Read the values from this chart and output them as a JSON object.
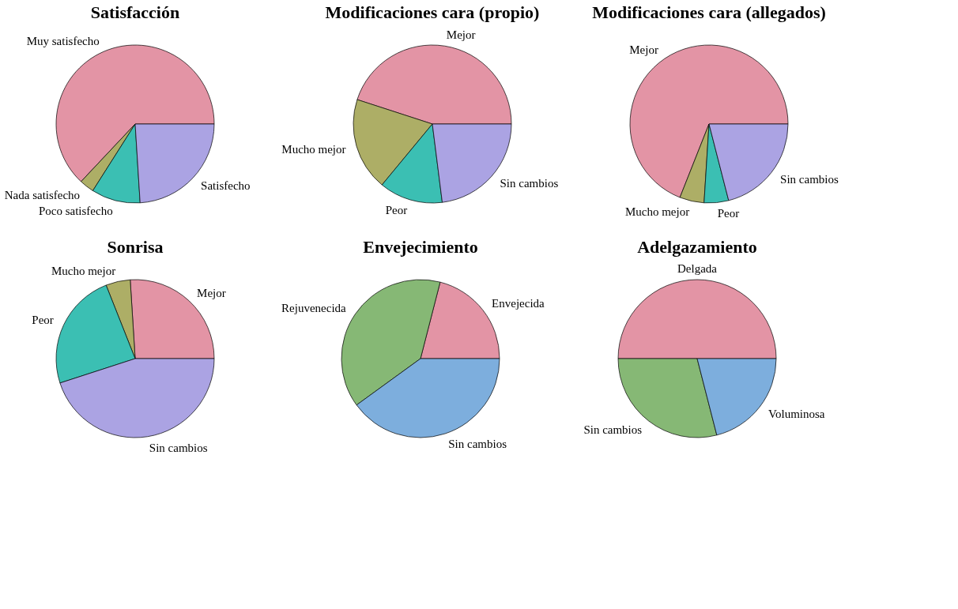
{
  "chart_data": [
    {
      "type": "pie",
      "title": "Satisfacción",
      "categories": [
        "Muy satisfecho",
        "Nada satisfecho",
        "Poco satisfecho",
        "Satisfecho"
      ],
      "values": [
        63,
        3,
        10,
        24
      ],
      "colors": [
        "#e394a5",
        "#adae66",
        "#3bbfb3",
        "#aba3e3"
      ],
      "legend": false
    },
    {
      "type": "pie",
      "title": "Modificaciones cara (propio)",
      "categories": [
        "Mejor",
        "Mucho mejor",
        "Peor",
        "Sin cambios"
      ],
      "values": [
        45,
        19,
        13,
        23
      ],
      "colors": [
        "#e394a5",
        "#adae66",
        "#3bbfb3",
        "#aba3e3"
      ],
      "legend": false
    },
    {
      "type": "pie",
      "title": "Modificaciones cara (allegados)",
      "categories": [
        "Mejor",
        "Mucho mejor",
        "Peor",
        "Sin cambios"
      ],
      "values": [
        69,
        5,
        5,
        21
      ],
      "colors": [
        "#e394a5",
        "#adae66",
        "#3bbfb3",
        "#aba3e3"
      ],
      "legend": false
    },
    {
      "type": "pie",
      "title": "Sonrisa",
      "categories": [
        "Mejor",
        "Mucho mejor",
        "Peor",
        "Sin cambios"
      ],
      "values": [
        26,
        5,
        24,
        45
      ],
      "colors": [
        "#e394a5",
        "#adae66",
        "#3bbfb3",
        "#aba3e3"
      ],
      "legend": false
    },
    {
      "type": "pie",
      "title": "Envejecimiento",
      "categories": [
        "Envejecida",
        "Rejuvenecida",
        "Sin cambios"
      ],
      "values": [
        21,
        39,
        40
      ],
      "colors": [
        "#e394a5",
        "#86b875",
        "#7daedd"
      ],
      "legend": false
    },
    {
      "type": "pie",
      "title": "Adelgazamiento",
      "categories": [
        "Delgada",
        "Sin cambios",
        "Voluminosa"
      ],
      "values": [
        50,
        29,
        21
      ],
      "colors": [
        "#e394a5",
        "#86b875",
        "#7daedd"
      ],
      "legend": false
    }
  ]
}
